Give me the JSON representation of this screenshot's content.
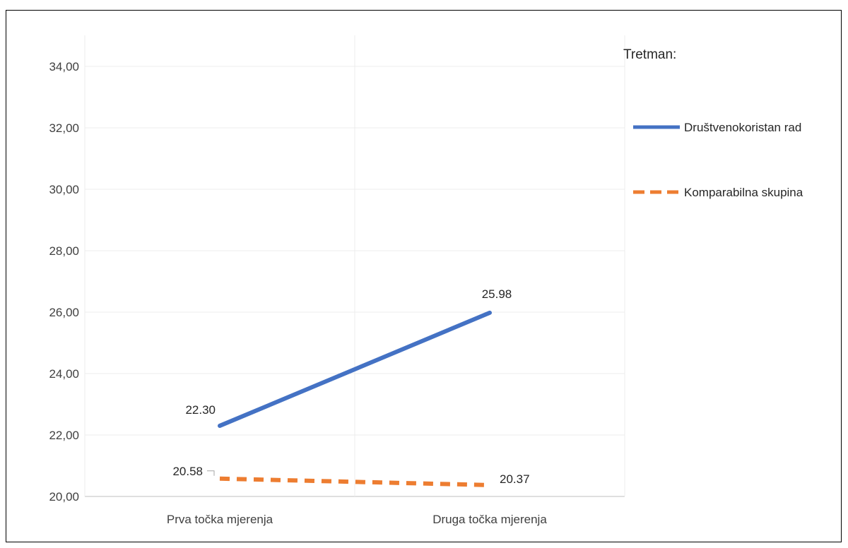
{
  "chart_data": {
    "type": "line",
    "categories": [
      "Prva točka mjerenja",
      "Druga točka mjerenja"
    ],
    "series": [
      {
        "name": "Društvenokoristan rad",
        "values": [
          22.3,
          25.98
        ],
        "labels": [
          "22.30",
          "25.98"
        ],
        "color": "#4472c4",
        "dash": "solid"
      },
      {
        "name": "Komparabilna skupina",
        "values": [
          20.58,
          20.37
        ],
        "labels": [
          "20.58",
          "20.37"
        ],
        "color": "#ed7d31",
        "dash": "dashed"
      }
    ],
    "yticks": [
      "20,00",
      "22,00",
      "24,00",
      "26,00",
      "28,00",
      "30,00",
      "32,00",
      "34,00"
    ],
    "ylim": [
      20,
      35
    ],
    "grid": true,
    "legend": {
      "title": "Tretman:",
      "placement": "right"
    },
    "title": "",
    "xlabel": "",
    "ylabel": ""
  }
}
